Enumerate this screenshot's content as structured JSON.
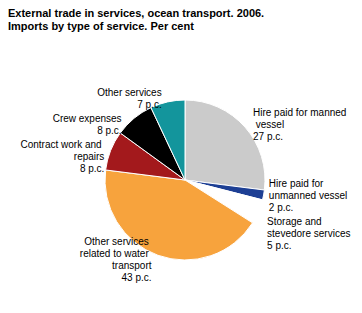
{
  "chart_data": {
    "type": "pie",
    "title": "External trade in services, ocean transport. 2006.",
    "subtitle": "Imports by type of service. Per cent",
    "categories": [
      "Hire paid for manned vessel",
      "Hire paid for unmanned vessel",
      "Storage and stevedore services",
      "Other services related to water transport",
      "Contract work and repairs",
      "Crew expenses",
      "Other services"
    ],
    "values": [
      27,
      2,
      5,
      43,
      8,
      8,
      7
    ],
    "value_labels": [
      "27 p.c.",
      "2 p.c.",
      "5 p.c.",
      "43 p.c.",
      "8 p.c.",
      "8 p.c.",
      "7 p.c."
    ],
    "colors": [
      "#cbcbcb",
      "#1d3f94",
      "#ffffff",
      "#f7a33d",
      "#a3191c",
      "#000000",
      "#13959c"
    ],
    "data_labels": true
  }
}
